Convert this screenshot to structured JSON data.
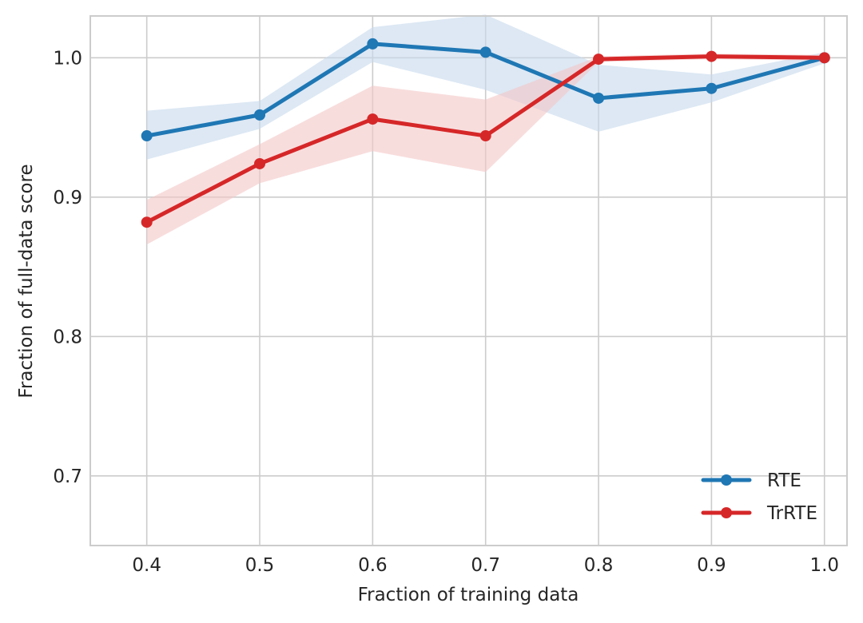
{
  "chart_data": {
    "type": "line",
    "title": "",
    "xlabel": "Fraction of training data",
    "ylabel": "Fraction of full-data score",
    "xlim": [
      0.35,
      1.02
    ],
    "ylim": [
      0.65,
      1.03
    ],
    "xticks": [
      0.4,
      0.5,
      0.6,
      0.7,
      0.8,
      0.9,
      1.0
    ],
    "xtick_labels": [
      "0.4",
      "0.5",
      "0.6",
      "0.7",
      "0.8",
      "0.9",
      "1.0"
    ],
    "yticks": [
      0.7,
      0.8,
      0.9,
      1.0
    ],
    "ytick_labels": [
      "0.7",
      "0.8",
      "0.9",
      "1.0"
    ],
    "grid": true,
    "legend_position": "bottom-right",
    "x": [
      0.4,
      0.5,
      0.6,
      0.7,
      0.8,
      0.9,
      1.0
    ],
    "series": [
      {
        "name": "RTE",
        "color": "#1f77b4",
        "band_color": "#c6d9ec",
        "values": [
          0.944,
          0.959,
          1.01,
          1.004,
          0.971,
          0.978,
          1.0
        ],
        "lower": [
          0.927,
          0.949,
          0.997,
          0.977,
          0.947,
          0.968,
          0.996
        ],
        "upper": [
          0.962,
          0.969,
          1.022,
          1.031,
          0.995,
          0.988,
          1.004
        ]
      },
      {
        "name": "TrRTE",
        "color": "#d62728",
        "band_color": "#f4c6c6",
        "values": [
          0.882,
          0.924,
          0.956,
          0.944,
          0.999,
          1.001,
          1.0
        ],
        "lower": [
          0.866,
          0.91,
          0.933,
          0.918,
          0.997,
          0.999,
          0.998
        ],
        "upper": [
          0.898,
          0.938,
          0.98,
          0.97,
          1.001,
          1.003,
          1.002
        ]
      }
    ]
  }
}
